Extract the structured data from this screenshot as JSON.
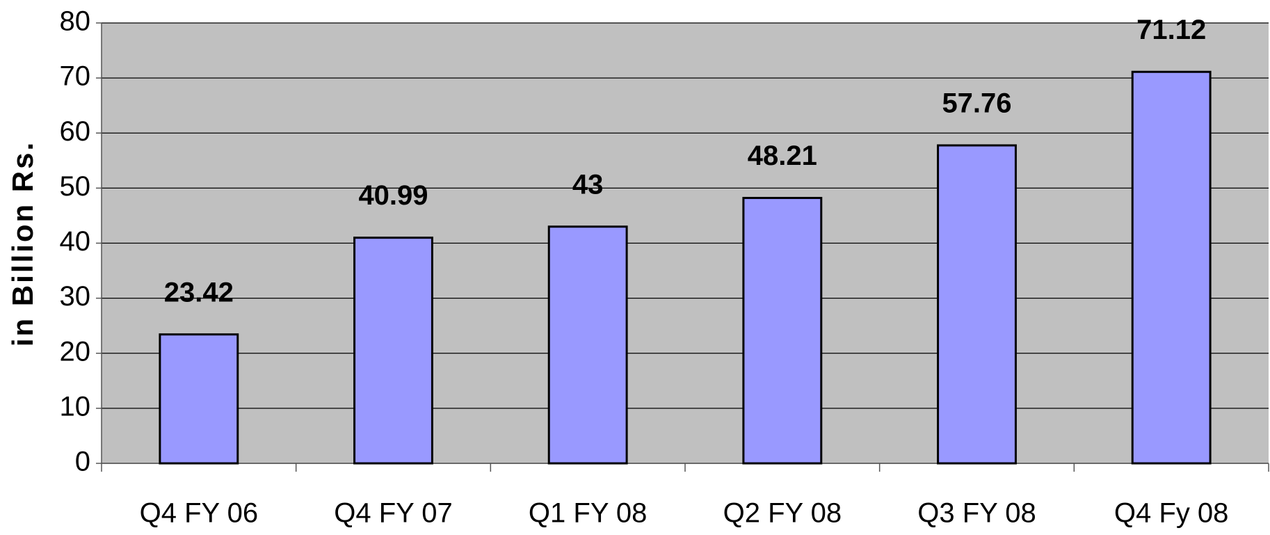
{
  "chart_data": {
    "type": "bar",
    "y_label": "in Billion Rs.",
    "categories": [
      "Q4 FY 06",
      "Q4 FY 07",
      "Q1 FY 08",
      "Q2 FY 08",
      "Q3 FY 08",
      "Q4 Fy 08"
    ],
    "values": [
      23.42,
      40.99,
      43,
      48.21,
      57.76,
      71.12
    ],
    "color": "#9999ff",
    "ylim": [
      0,
      80
    ],
    "yticks": [
      0,
      10,
      20,
      30,
      40,
      50,
      60,
      70,
      80
    ],
    "grid": true
  }
}
